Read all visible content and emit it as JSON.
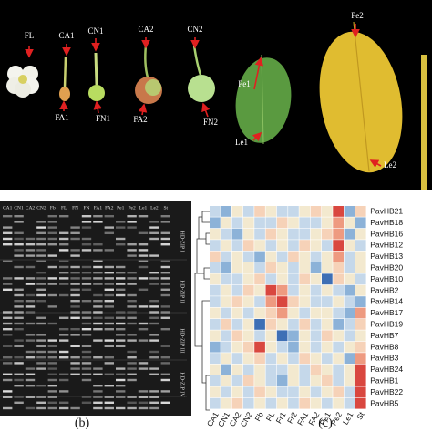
{
  "photo": {
    "labels": [
      "FL",
      "CA1",
      "FA1",
      "CN1",
      "FN1",
      "CA2",
      "FA2",
      "CN2",
      "FN2",
      "Pe1",
      "Le1",
      "Pe2",
      "Le2"
    ]
  },
  "gel": {
    "lanes": [
      "CA1",
      "CN1",
      "CA2",
      "CN2",
      "Fb",
      "FL",
      "FN",
      "FN",
      "FA1",
      "FA2",
      "Pe1",
      "Pe2",
      "Le1",
      "Le2",
      "St"
    ],
    "groups": [
      "HD-ZIP I",
      "HD-ZIP II",
      "HD-ZIP III",
      "HD-ZIP IV"
    ],
    "caption": "(b)"
  },
  "heatmap": {
    "columns": [
      "CA1",
      "CN1",
      "CA2",
      "CN2",
      "Fb",
      "FL",
      "Fr1",
      "Fr2",
      "FA1",
      "FA2",
      "Pe1",
      "Pe2",
      "Le1",
      "St"
    ],
    "rows": [
      {
        "name": "PavHB21",
        "colors": [
          "#c5d8ea",
          "#8cb2d8",
          "#f3e9cf",
          "#c5d8ea",
          "#f6d2b8",
          "#f3e9cf",
          "#c5d8ea",
          "#c5d8ea",
          "#f3e9cf",
          "#f6d2b8",
          "#f3e9cf",
          "#d9473f",
          "#8cb2d8",
          "#f6d2b8"
        ]
      },
      {
        "name": "PavHB18",
        "colors": [
          "#8cb2d8",
          "#f3e9cf",
          "#c5d8ea",
          "#f3e9cf",
          "#c5d8ea",
          "#c5d8ea",
          "#f6d2b8",
          "#f3e9cf",
          "#c5d8ea",
          "#c5d8ea",
          "#f3e9cf",
          "#ee9a80",
          "#f3e9cf",
          "#8cb2d8"
        ]
      },
      {
        "name": "PavHB16",
        "colors": [
          "#f3e9cf",
          "#c5d8ea",
          "#8cb2d8",
          "#f3e9cf",
          "#c5d8ea",
          "#f6d2b8",
          "#f3e9cf",
          "#c5d8ea",
          "#c5d8ea",
          "#f3e9cf",
          "#f6d2b8",
          "#ee9a80",
          "#8cb2d8",
          "#f3e9cf"
        ]
      },
      {
        "name": "PavHB12",
        "colors": [
          "#c5d8ea",
          "#f3e9cf",
          "#c5d8ea",
          "#f6d2b8",
          "#f3e9cf",
          "#c5d8ea",
          "#f3e9cf",
          "#c5d8ea",
          "#f6d2b8",
          "#f3e9cf",
          "#c5d8ea",
          "#d9473f",
          "#f3e9cf",
          "#c5d8ea"
        ]
      },
      {
        "name": "PavHB13",
        "colors": [
          "#f6d2b8",
          "#c5d8ea",
          "#f3e9cf",
          "#c5d8ea",
          "#8cb2d8",
          "#f3e9cf",
          "#c5d8ea",
          "#f6d2b8",
          "#f3e9cf",
          "#c5d8ea",
          "#f3e9cf",
          "#ee9a80",
          "#c5d8ea",
          "#f3e9cf"
        ]
      },
      {
        "name": "PavHB20",
        "colors": [
          "#c5d8ea",
          "#8cb2d8",
          "#f3e9cf",
          "#f3e9cf",
          "#c5d8ea",
          "#f6d2b8",
          "#f3e9cf",
          "#c5d8ea",
          "#f3e9cf",
          "#8cb2d8",
          "#f3e9cf",
          "#f6d2b8",
          "#c5d8ea",
          "#f3e9cf"
        ]
      },
      {
        "name": "PavHB10",
        "colors": [
          "#f3e9cf",
          "#c5d8ea",
          "#c5d8ea",
          "#f3e9cf",
          "#f6d2b8",
          "#c5d8ea",
          "#f3e9cf",
          "#c5d8ea",
          "#f6d2b8",
          "#f3e9cf",
          "#3e6fb5",
          "#f6d2b8",
          "#f3e9cf",
          "#c5d8ea"
        ]
      },
      {
        "name": "PavHB2",
        "colors": [
          "#c5d8ea",
          "#f3e9cf",
          "#c5d8ea",
          "#f6d2b8",
          "#f3e9cf",
          "#d9473f",
          "#ee9a80",
          "#c5d8ea",
          "#f3e9cf",
          "#c5d8ea",
          "#f3e9cf",
          "#c5d8ea",
          "#8cb2d8",
          "#f3e9cf"
        ]
      },
      {
        "name": "PavHB14",
        "colors": [
          "#c5d8ea",
          "#f3e9cf",
          "#f6d2b8",
          "#f3e9cf",
          "#c5d8ea",
          "#ee9a80",
          "#d9473f",
          "#f6d2b8",
          "#f3e9cf",
          "#c5d8ea",
          "#c5d8ea",
          "#f3e9cf",
          "#c5d8ea",
          "#8cb2d8"
        ]
      },
      {
        "name": "PavHB17",
        "colors": [
          "#f3e9cf",
          "#c5d8ea",
          "#f3e9cf",
          "#c5d8ea",
          "#f3e9cf",
          "#f6d2b8",
          "#ee9a80",
          "#f3e9cf",
          "#c5d8ea",
          "#f3e9cf",
          "#f3e9cf",
          "#c5d8ea",
          "#8cb2d8",
          "#ee9a80"
        ]
      },
      {
        "name": "PavHB19",
        "colors": [
          "#c5d8ea",
          "#f6d2b8",
          "#c5d8ea",
          "#f3e9cf",
          "#3e6fb5",
          "#f6d2b8",
          "#f3e9cf",
          "#c5d8ea",
          "#f6d2b8",
          "#c5d8ea",
          "#f3e9cf",
          "#8cb2d8",
          "#c5d8ea",
          "#f6d2b8"
        ]
      },
      {
        "name": "PavHB7",
        "colors": [
          "#f3e9cf",
          "#c5d8ea",
          "#f6d2b8",
          "#f3e9cf",
          "#c5d8ea",
          "#f3e9cf",
          "#3e6fb5",
          "#8cb2d8",
          "#f3e9cf",
          "#c5d8ea",
          "#f6d2b8",
          "#f3e9cf",
          "#c5d8ea",
          "#f3e9cf"
        ]
      },
      {
        "name": "PavHB8",
        "colors": [
          "#8cb2d8",
          "#c5d8ea",
          "#f3e9cf",
          "#f6d2b8",
          "#d9473f",
          "#f3e9cf",
          "#c5d8ea",
          "#8cb2d8",
          "#f3e9cf",
          "#c5d8ea",
          "#f3e9cf",
          "#c5d8ea",
          "#f3e9cf",
          "#f6d2b8"
        ]
      },
      {
        "name": "PavHB3",
        "colors": [
          "#c5d8ea",
          "#f3e9cf",
          "#c5d8ea",
          "#f3e9cf",
          "#f6d2b8",
          "#c5d8ea",
          "#f3e9cf",
          "#c5d8ea",
          "#f6d2b8",
          "#f3e9cf",
          "#c5d8ea",
          "#f3e9cf",
          "#8cb2d8",
          "#ee9a80"
        ]
      },
      {
        "name": "PavHB24",
        "colors": [
          "#f3e9cf",
          "#8cb2d8",
          "#f3e9cf",
          "#c5d8ea",
          "#f3e9cf",
          "#c5d8ea",
          "#c5d8ea",
          "#f3e9cf",
          "#c5d8ea",
          "#f6d2b8",
          "#f3e9cf",
          "#c5d8ea",
          "#f3e9cf",
          "#d9473f"
        ]
      },
      {
        "name": "PavHB1",
        "colors": [
          "#c5d8ea",
          "#f3e9cf",
          "#c5d8ea",
          "#f6d2b8",
          "#f3e9cf",
          "#c5d8ea",
          "#8cb2d8",
          "#f3e9cf",
          "#c5d8ea",
          "#f3e9cf",
          "#f6d2b8",
          "#c5d8ea",
          "#f3e9cf",
          "#d9473f"
        ]
      },
      {
        "name": "PavHB22",
        "colors": [
          "#f3e9cf",
          "#c5d8ea",
          "#f3e9cf",
          "#c5d8ea",
          "#f6d2b8",
          "#f3e9cf",
          "#c5d8ea",
          "#c5d8ea",
          "#f3e9cf",
          "#c5d8ea",
          "#f3e9cf",
          "#f6d2b8",
          "#c5d8ea",
          "#d9473f"
        ]
      },
      {
        "name": "PavHB5",
        "colors": [
          "#c5d8ea",
          "#f3e9cf",
          "#f6d2b8",
          "#c5d8ea",
          "#f3e9cf",
          "#c5d8ea",
          "#f3e9cf",
          "#c5d8ea",
          "#f6d2b8",
          "#f3e9cf",
          "#c5d8ea",
          "#f3e9cf",
          "#c5d8ea",
          "#d9473f"
        ]
      }
    ],
    "caption": "(c)"
  }
}
